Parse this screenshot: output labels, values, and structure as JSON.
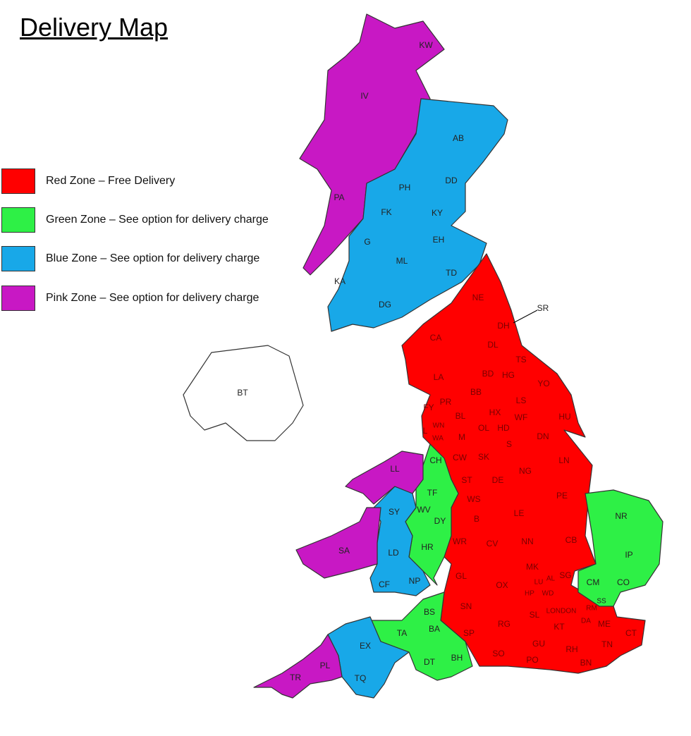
{
  "title": "Delivery Map",
  "zones": {
    "red": {
      "color": "#ff0000",
      "label": "Red Zone – Free Delivery"
    },
    "green": {
      "color": "#2ef046",
      "label": "Green Zone – See option for delivery charge"
    },
    "blue": {
      "color": "#18a8e8",
      "label": "Blue Zone – See option for delivery charge"
    },
    "pink": {
      "color": "#c818c4",
      "label": "Pink Zone – See option for delivery charge"
    },
    "none": {
      "color": "#ffffff"
    }
  },
  "postcode_areas": {
    "pink": [
      "KW",
      "IV",
      "PA",
      "LL",
      "SA",
      "PL",
      "TR"
    ],
    "blue": [
      "AB",
      "PH",
      "DD",
      "FK",
      "KY",
      "EH",
      "G",
      "ML",
      "TD",
      "KA",
      "DG",
      "SY",
      "LD",
      "CF",
      "NP",
      "EX",
      "TQ"
    ],
    "green": [
      "CH",
      "TF",
      "WV",
      "DY",
      "HR",
      "BS",
      "TA",
      "BA",
      "DT",
      "BH",
      "NR",
      "IP",
      "CM",
      "CO",
      "SS"
    ],
    "red": [
      "NE",
      "SR",
      "DH",
      "DL",
      "CA",
      "TS",
      "BD",
      "HG",
      "YO",
      "LA",
      "BB",
      "PR",
      "FY",
      "LS",
      "BL",
      "HX",
      "WF",
      "HU",
      "WN",
      "OL",
      "HD",
      "L",
      "WA",
      "M",
      "DN",
      "S",
      "CW",
      "SK",
      "LN",
      "NG",
      "ST",
      "DE",
      "PE",
      "WS",
      "LE",
      "B",
      "WR",
      "CV",
      "NN",
      "CB",
      "GL",
      "MK",
      "LU",
      "AL",
      "SG",
      "OX",
      "HP",
      "WD",
      "SN",
      "LONDON",
      "RM",
      "SL",
      "DA",
      "ME",
      "KT",
      "CT",
      "SP",
      "RG",
      "GU",
      "TN",
      "RH",
      "SO",
      "PO",
      "BN"
    ],
    "none": [
      "BT"
    ]
  }
}
